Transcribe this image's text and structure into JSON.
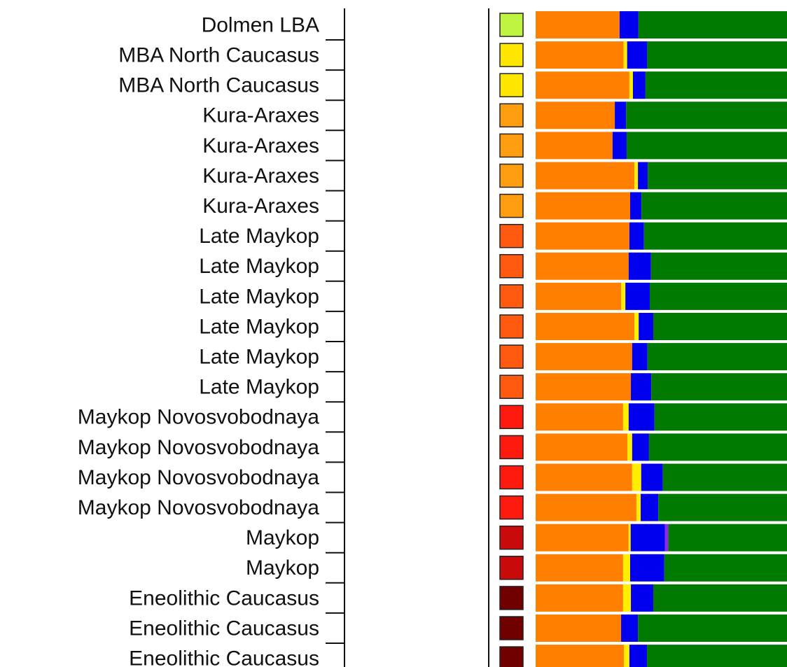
{
  "chart_data": {
    "type": "stacked-bar-horizontal",
    "categories": [
      "Dolmen LBA",
      "MBA North Caucasus",
      "MBA North Caucasus",
      "Kura-Araxes",
      "Kura-Araxes",
      "Kura-Araxes",
      "Kura-Araxes",
      "Late Maykop",
      "Late Maykop",
      "Late Maykop",
      "Late Maykop",
      "Late Maykop",
      "Late Maykop",
      "Maykop Novosvobodnaya",
      "Maykop Novosvobodnaya",
      "Maykop Novosvobodnaya",
      "Maykop Novosvobodnaya",
      "Maykop",
      "Maykop",
      "Eneolithic Caucasus",
      "Eneolithic Caucasus",
      "Eneolithic Caucasus"
    ],
    "swatch_colors": [
      "#bff542",
      "#ffe600",
      "#ffe600",
      "#ff9d10",
      "#ff9d10",
      "#ff9d10",
      "#ff9d10",
      "#ff5a10",
      "#ff5a10",
      "#ff5a10",
      "#ff5a10",
      "#ff5a10",
      "#ff5a10",
      "#ff1a10",
      "#ff1a10",
      "#ff1a10",
      "#ff1a10",
      "#c80a0a",
      "#c80a0a",
      "#700000",
      "#700000",
      "#700000"
    ],
    "xlim": [
      0,
      100
    ],
    "series": [
      {
        "color": "#ff8000",
        "values": [
          33.4,
          35,
          37.3,
          31.5,
          30.6,
          39.3,
          37.6,
          37.3,
          37,
          34,
          39.3,
          38.4,
          37.9,
          34.8,
          36.5,
          38.4,
          40.1,
          37,
          34.8,
          34.8,
          34,
          35.1
        ]
      },
      {
        "color": "#ffee00",
        "values": [
          0,
          1.4,
          1.4,
          0,
          0,
          1.4,
          0,
          0,
          0,
          1.7,
          1.7,
          0,
          0,
          2.2,
          1.9,
          3.6,
          1.7,
          0.8,
          2.8,
          3.1,
          0,
          2.2
        ]
      },
      {
        "color": "#0000ee",
        "values": [
          7.5,
          8,
          5,
          4.5,
          5.6,
          3.9,
          4.5,
          5.8,
          8.9,
          9.7,
          5.8,
          6.1,
          8.1,
          10.3,
          6.7,
          8.6,
          7,
          13.6,
          13.6,
          8.9,
          6.7,
          7
        ]
      },
      {
        "color": "#8a2be2",
        "values": [
          0,
          0,
          0,
          0,
          0,
          0,
          0,
          0,
          0,
          0,
          0,
          0,
          0,
          0,
          0,
          0,
          0,
          1.4,
          0,
          0,
          0,
          0
        ]
      },
      {
        "color": "#007a00",
        "values": [
          59.1,
          55.6,
          56.3,
          64,
          63.8,
          55.4,
          57.9,
          56.9,
          54.1,
          54.6,
          53.2,
          55.5,
          54,
          52.7,
          54.9,
          49.4,
          51.2,
          47.2,
          48.8,
          53.2,
          59.3,
          55.7
        ]
      }
    ]
  }
}
